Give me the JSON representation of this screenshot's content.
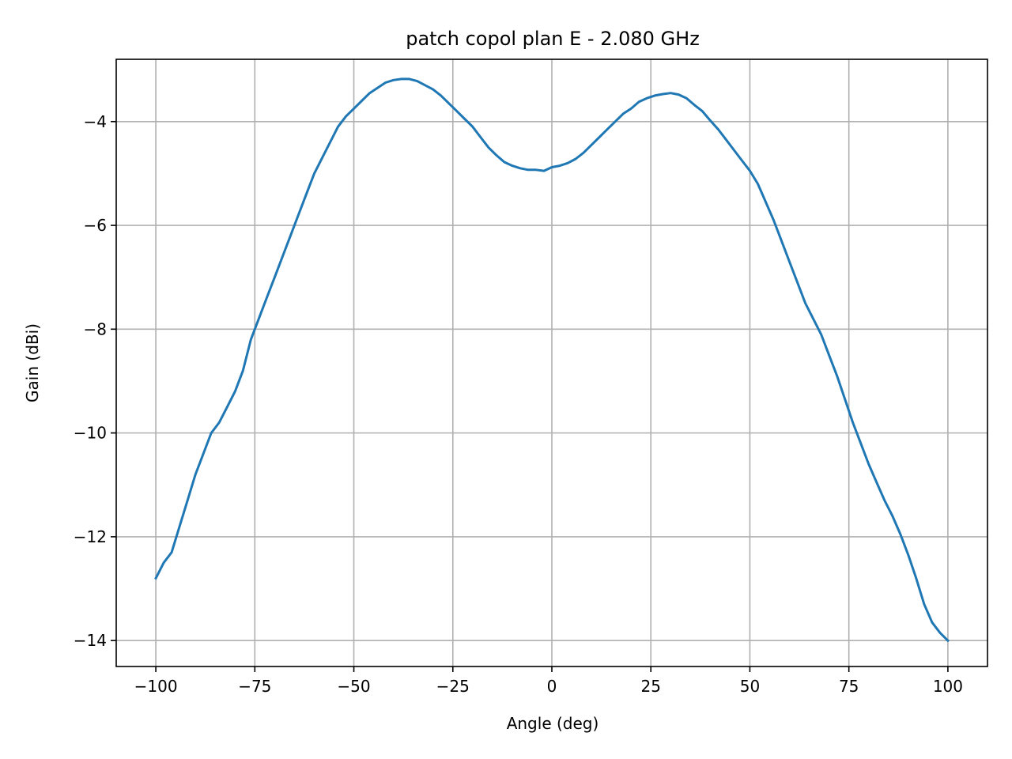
{
  "chart_data": {
    "type": "line",
    "title": "patch copol plan E - 2.080 GHz",
    "xlabel": "Angle (deg)",
    "ylabel": "Gain (dBi)",
    "xlim": [
      -110,
      110
    ],
    "ylim": [
      -14.5,
      -2.8
    ],
    "grid": true,
    "line_color": "#1f77b4",
    "xticks": [
      -100,
      -75,
      -50,
      -25,
      0,
      25,
      50,
      75,
      100
    ],
    "xtick_labels": [
      "−100",
      "−75",
      "−50",
      "−25",
      "0",
      "25",
      "50",
      "75",
      "100"
    ],
    "yticks": [
      -14,
      -12,
      -10,
      -8,
      -6,
      -4
    ],
    "ytick_labels": [
      "−14",
      "−12",
      "−10",
      "−8",
      "−6",
      "−4"
    ],
    "series": [
      {
        "x": [
          -100,
          -98,
          -96,
          -94,
          -92,
          -90,
          -88,
          -86,
          -84,
          -82,
          -80,
          -78,
          -76,
          -74,
          -72,
          -70,
          -68,
          -66,
          -64,
          -62,
          -60,
          -58,
          -56,
          -54,
          -52,
          -50,
          -48,
          -46,
          -44,
          -42,
          -40,
          -38,
          -36,
          -34,
          -32,
          -30,
          -28,
          -26,
          -24,
          -22,
          -20,
          -18,
          -16,
          -14,
          -12,
          -10,
          -8,
          -6,
          -4,
          -2,
          0,
          2,
          4,
          6,
          8,
          10,
          12,
          14,
          16,
          18,
          20,
          22,
          24,
          26,
          28,
          30,
          32,
          34,
          36,
          38,
          40,
          42,
          44,
          46,
          48,
          50,
          52,
          54,
          56,
          58,
          60,
          62,
          64,
          66,
          68,
          70,
          72,
          74,
          76,
          78,
          80,
          82,
          84,
          86,
          88,
          90,
          92,
          94,
          96,
          98,
          100
        ],
        "values": [
          -12.8,
          -12.5,
          -12.3,
          -11.8,
          -11.3,
          -10.8,
          -10.4,
          -10.0,
          -9.8,
          -9.5,
          -9.2,
          -8.8,
          -8.2,
          -7.8,
          -7.4,
          -7.0,
          -6.6,
          -6.2,
          -5.8,
          -5.4,
          -5.0,
          -4.7,
          -4.4,
          -4.1,
          -3.9,
          -3.75,
          -3.6,
          -3.45,
          -3.35,
          -3.25,
          -3.2,
          -3.18,
          -3.18,
          -3.22,
          -3.3,
          -3.38,
          -3.5,
          -3.65,
          -3.8,
          -3.95,
          -4.1,
          -4.3,
          -4.5,
          -4.65,
          -4.78,
          -4.85,
          -4.9,
          -4.93,
          -4.93,
          -4.95,
          -4.88,
          -4.85,
          -4.8,
          -4.72,
          -4.6,
          -4.45,
          -4.3,
          -4.15,
          -4.0,
          -3.85,
          -3.75,
          -3.62,
          -3.55,
          -3.5,
          -3.47,
          -3.45,
          -3.48,
          -3.55,
          -3.68,
          -3.8,
          -3.98,
          -4.15,
          -4.35,
          -4.55,
          -4.75,
          -4.95,
          -5.2,
          -5.55,
          -5.9,
          -6.3,
          -6.7,
          -7.1,
          -7.5,
          -7.8,
          -8.1,
          -8.5,
          -8.9,
          -9.35,
          -9.8,
          -10.2,
          -10.6,
          -10.95,
          -11.3,
          -11.6,
          -11.95,
          -12.35,
          -12.8,
          -13.3,
          -13.65,
          -13.85,
          -14.0
        ]
      }
    ]
  }
}
